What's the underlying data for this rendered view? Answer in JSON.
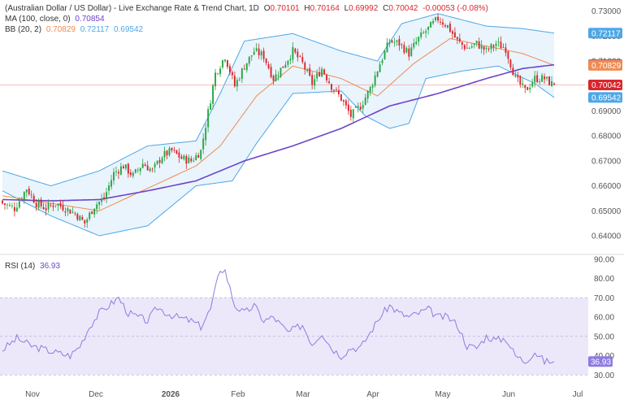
{
  "header": {
    "title": "(Australian Dollar / US Dollar) - Live Exchange Rate & Trend Chart, 1D",
    "ohlc": {
      "o_label": "O",
      "open": "0.70101",
      "h_label": "H",
      "high": "0.70164",
      "l_label": "L",
      "low": "0.69992",
      "c_label": "C",
      "close": "0.70042",
      "change": "-0.00053 (-0.08%)"
    },
    "ma_label": "MA (100, close, 0)",
    "ma_value": "0.70854",
    "bb_label": "BB (20, 2)",
    "bb_mid": "0.70829",
    "bb_upper": "0.72117",
    "bb_lower": "0.69542",
    "rsi_label": "RSI (14)",
    "rsi_value": "36.93"
  },
  "colors": {
    "up": "#26a541",
    "down": "#d9262b",
    "ma": "#6d45c8",
    "bb_mid": "#f08b50",
    "bb_band": "#4ea7e6",
    "bb_fill": "#e9f4fd",
    "rsi": "#8f7be0",
    "rsi_zone": "#ece8f9",
    "close_line": "#f4a6a6"
  },
  "chart_data": {
    "type": "candlestick",
    "price_axis": {
      "ticks": [
        "0.73000",
        "0.72000",
        "0.71000",
        "0.70000",
        "0.69000",
        "0.68000",
        "0.67000",
        "0.66000",
        "0.65000",
        "0.64000"
      ],
      "ylim": [
        0.6335,
        0.7325
      ]
    },
    "x_axis": {
      "labels": [
        "Nov",
        "Dec",
        "2026",
        "Feb",
        "Mar",
        "Apr",
        "May",
        "Jun",
        "Jul"
      ]
    },
    "price_badges": [
      {
        "label": "0.72117",
        "value": 0.72117,
        "color": "#4ea7e6"
      },
      {
        "label": "0.70854",
        "value": 0.70854,
        "color": "#6d45c8"
      },
      {
        "label": "0.70829",
        "value": 0.70829,
        "color": "#f08b50"
      },
      {
        "label": "0.70042",
        "value": 0.70042,
        "color": "#d9262b"
      },
      {
        "label": "0.69542",
        "value": 0.69542,
        "color": "#4ea7e6"
      }
    ],
    "close_keypoints": [
      [
        0,
        0.653
      ],
      [
        5,
        0.651
      ],
      [
        10,
        0.659
      ],
      [
        14,
        0.653
      ],
      [
        18,
        0.651
      ],
      [
        22,
        0.653
      ],
      [
        26,
        0.651
      ],
      [
        30,
        0.649
      ],
      [
        34,
        0.645
      ],
      [
        38,
        0.652
      ],
      [
        42,
        0.655
      ],
      [
        46,
        0.665
      ],
      [
        50,
        0.668
      ],
      [
        54,
        0.664
      ],
      [
        58,
        0.669
      ],
      [
        62,
        0.666
      ],
      [
        66,
        0.672
      ],
      [
        70,
        0.674
      ],
      [
        74,
        0.671
      ],
      [
        78,
        0.67
      ],
      [
        82,
        0.674
      ],
      [
        88,
        0.705
      ],
      [
        92,
        0.712
      ],
      [
        96,
        0.7
      ],
      [
        100,
        0.708
      ],
      [
        104,
        0.714
      ],
      [
        108,
        0.712
      ],
      [
        112,
        0.703
      ],
      [
        116,
        0.708
      ],
      [
        120,
        0.714
      ],
      [
        124,
        0.709
      ],
      [
        128,
        0.701
      ],
      [
        132,
        0.707
      ],
      [
        136,
        0.7
      ],
      [
        140,
        0.695
      ],
      [
        144,
        0.688
      ],
      [
        148,
        0.692
      ],
      [
        152,
        0.699
      ],
      [
        156,
        0.709
      ],
      [
        160,
        0.718
      ],
      [
        164,
        0.717
      ],
      [
        168,
        0.713
      ],
      [
        172,
        0.719
      ],
      [
        176,
        0.723
      ],
      [
        180,
        0.727
      ],
      [
        184,
        0.724
      ],
      [
        188,
        0.718
      ],
      [
        192,
        0.715
      ],
      [
        196,
        0.717
      ],
      [
        200,
        0.714
      ],
      [
        204,
        0.717
      ],
      [
        208,
        0.715
      ],
      [
        212,
        0.703
      ],
      [
        216,
        0.698
      ],
      [
        220,
        0.703
      ],
      [
        224,
        0.703
      ],
      [
        228,
        0.7
      ]
    ],
    "ma_keypoints": [
      [
        0,
        0.6545
      ],
      [
        20,
        0.654
      ],
      [
        40,
        0.6545
      ],
      [
        60,
        0.658
      ],
      [
        80,
        0.662
      ],
      [
        100,
        0.67
      ],
      [
        120,
        0.676
      ],
      [
        140,
        0.683
      ],
      [
        160,
        0.692
      ],
      [
        180,
        0.697
      ],
      [
        200,
        0.703
      ],
      [
        215,
        0.707
      ],
      [
        228,
        0.7085
      ]
    ],
    "bb_mid_keypoints": [
      [
        0,
        0.656
      ],
      [
        20,
        0.653
      ],
      [
        40,
        0.65
      ],
      [
        60,
        0.659
      ],
      [
        80,
        0.668
      ],
      [
        90,
        0.676
      ],
      [
        105,
        0.696
      ],
      [
        120,
        0.708
      ],
      [
        140,
        0.703
      ],
      [
        155,
        0.696
      ],
      [
        170,
        0.709
      ],
      [
        185,
        0.719
      ],
      [
        200,
        0.716
      ],
      [
        215,
        0.713
      ],
      [
        228,
        0.7083
      ]
    ],
    "bb_upper_keypoints": [
      [
        0,
        0.666
      ],
      [
        20,
        0.66
      ],
      [
        40,
        0.666
      ],
      [
        60,
        0.676
      ],
      [
        80,
        0.678
      ],
      [
        90,
        0.697
      ],
      [
        100,
        0.718
      ],
      [
        120,
        0.721
      ],
      [
        140,
        0.714
      ],
      [
        155,
        0.71
      ],
      [
        165,
        0.725
      ],
      [
        180,
        0.729
      ],
      [
        200,
        0.724
      ],
      [
        215,
        0.723
      ],
      [
        228,
        0.7212
      ]
    ],
    "bb_lower_keypoints": [
      [
        0,
        0.658
      ],
      [
        20,
        0.648
      ],
      [
        40,
        0.64
      ],
      [
        60,
        0.644
      ],
      [
        80,
        0.66
      ],
      [
        95,
        0.662
      ],
      [
        105,
        0.677
      ],
      [
        120,
        0.697
      ],
      [
        140,
        0.698
      ],
      [
        150,
        0.688
      ],
      [
        160,
        0.683
      ],
      [
        168,
        0.685
      ],
      [
        175,
        0.703
      ],
      [
        190,
        0.706
      ],
      [
        205,
        0.708
      ],
      [
        220,
        0.701
      ],
      [
        228,
        0.6954
      ]
    ],
    "rsi_axis": {
      "ticks": [
        "90.00",
        "80.00",
        "70.00",
        "60.00",
        "50.00",
        "40.00",
        "30.00"
      ],
      "ylim": [
        28,
        92
      ]
    },
    "rsi_keypoints": [
      [
        0,
        43
      ],
      [
        6,
        49
      ],
      [
        12,
        45
      ],
      [
        18,
        43
      ],
      [
        24,
        41
      ],
      [
        28,
        40
      ],
      [
        32,
        45
      ],
      [
        36,
        55
      ],
      [
        40,
        62
      ],
      [
        44,
        66
      ],
      [
        48,
        70
      ],
      [
        52,
        62
      ],
      [
        56,
        60
      ],
      [
        60,
        58
      ],
      [
        64,
        65
      ],
      [
        68,
        62
      ],
      [
        72,
        60
      ],
      [
        78,
        58
      ],
      [
        82,
        55
      ],
      [
        86,
        64
      ],
      [
        90,
        85
      ],
      [
        92,
        84
      ],
      [
        96,
        66
      ],
      [
        100,
        62
      ],
      [
        104,
        66
      ],
      [
        108,
        58
      ],
      [
        112,
        60
      ],
      [
        118,
        52
      ],
      [
        124,
        56
      ],
      [
        128,
        46
      ],
      [
        132,
        52
      ],
      [
        136,
        44
      ],
      [
        140,
        40
      ],
      [
        144,
        44
      ],
      [
        148,
        44
      ],
      [
        152,
        52
      ],
      [
        156,
        60
      ],
      [
        160,
        66
      ],
      [
        164,
        62
      ],
      [
        168,
        60
      ],
      [
        172,
        62
      ],
      [
        176,
        64
      ],
      [
        180,
        60
      ],
      [
        184,
        60
      ],
      [
        188,
        56
      ],
      [
        192,
        45
      ],
      [
        196,
        44
      ],
      [
        200,
        50
      ],
      [
        204,
        48
      ],
      [
        208,
        49
      ],
      [
        212,
        40
      ],
      [
        216,
        37
      ],
      [
        220,
        42
      ],
      [
        224,
        37
      ],
      [
        228,
        36.93
      ]
    ]
  }
}
